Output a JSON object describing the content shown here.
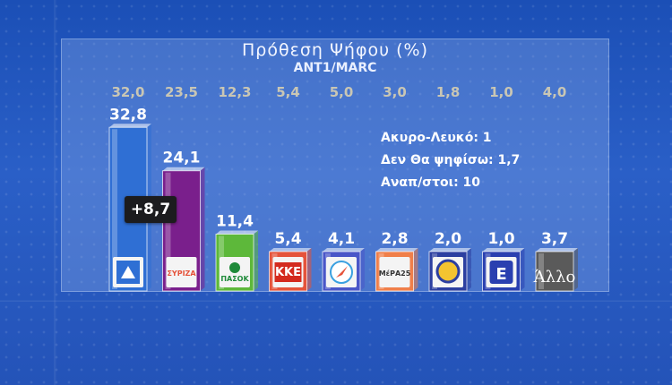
{
  "header": {
    "title": "Πρόθεση Ψήφου (%)",
    "subtitle": "ANT1/MARC"
  },
  "chart_data": {
    "type": "bar",
    "title": "Πρόθεση Ψήφου (%)",
    "subtitle": "ANT1/MARC",
    "categories": [
      "ΝΔ",
      "ΣΥΡΙΖΑ",
      "ΠΑΣΟΚ",
      "ΚΚΕ",
      "ΠΛΕΥΣΗ",
      "ΜέΡΑ25",
      "ΕΛΛΗΝΙΚΗ ΛΥΣΗ",
      "Ε",
      "Άλλο"
    ],
    "series": [
      {
        "values": [
          32.8,
          24.1,
          11.4,
          5.4,
          4.1,
          2.8,
          2.0,
          1.0,
          3.7
        ]
      }
    ],
    "values": [
      32.8,
      24.1,
      11.4,
      5.4,
      4.1,
      2.8,
      2.0,
      1.0,
      3.7
    ],
    "value_labels": [
      "32,8",
      "24,1",
      "11,4",
      "5,4",
      "4,1",
      "2,8",
      "2,0",
      "1,0",
      "3,7"
    ],
    "previous_values": [
      32.0,
      23.5,
      12.3,
      5.4,
      5.0,
      3.0,
      1.8,
      1.0,
      4.0
    ],
    "previous_labels": [
      "32,0",
      "23,5",
      "12,3",
      "5,4",
      "5,0",
      "3,0",
      "1,8",
      "1,0",
      "4,0"
    ],
    "colors": [
      "#2f6fd4",
      "#7a1f8c",
      "#5db83a",
      "#e5533a",
      "#4a56c8",
      "#f07f4a",
      "#2c3fa0",
      "#2a3fb0",
      "#5a5a5a"
    ],
    "difference_label": "+8,7",
    "ylim": [
      0,
      35
    ],
    "grid": false,
    "logos": [
      {
        "icon": "nd-logo-icon",
        "text": ""
      },
      {
        "icon": "syriza-logo-icon",
        "text": "ΣΥΡΙΖΑ"
      },
      {
        "icon": "pasok-logo-icon",
        "text": "ΠΑΣΟΚ"
      },
      {
        "icon": "kke-logo-icon",
        "text": "ΚΚΕ"
      },
      {
        "icon": "plefsi-logo-icon",
        "text": ""
      },
      {
        "icon": "mera25-logo-icon",
        "text": "ΜέΡΑ25"
      },
      {
        "icon": "elliniki-lysi-logo-icon",
        "text": ""
      },
      {
        "icon": "niki-logo-icon",
        "text": "Ε"
      },
      {
        "icon": "other-logo-icon",
        "text": "Άλλο"
      }
    ]
  },
  "notes": [
    "Ακυρο-Λευκό: 1",
    "Δεν Θα ψηφίσω: 1,7",
    "Αναπ/στοι: 10"
  ]
}
